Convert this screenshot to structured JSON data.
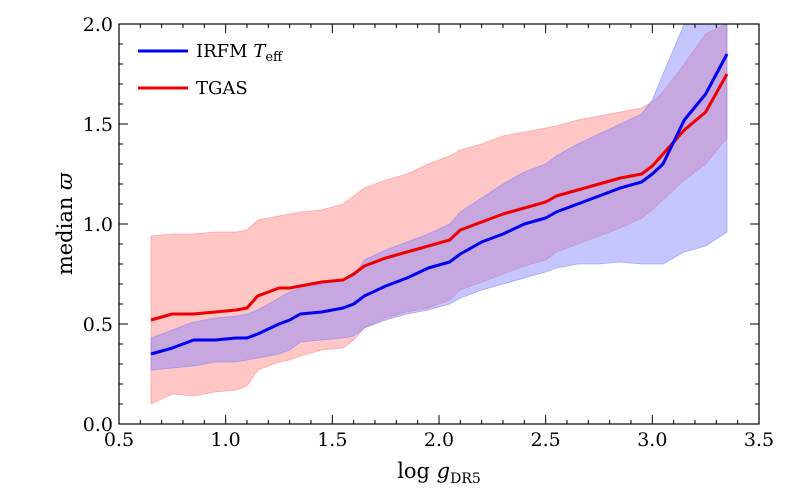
{
  "chart_data": {
    "type": "line",
    "title": "",
    "xlabel": {
      "main": "log ",
      "var": "g",
      "sub": "DR5"
    },
    "ylabel": {
      "main": "median ",
      "var": "ϖ"
    },
    "xlim": [
      0.5,
      3.5
    ],
    "ylim": [
      0.0,
      2.0
    ],
    "xticks": [
      "0.5",
      "1.0",
      "1.5",
      "2.0",
      "2.5",
      "3.0",
      "3.5"
    ],
    "yticks": [
      "0.0",
      "0.5",
      "1.0",
      "1.5",
      "2.0"
    ],
    "grid": false,
    "legend_position": "top-left",
    "series": [
      {
        "name": "IRFM T_eff",
        "legend_main": "IRFM ",
        "legend_var": "T",
        "legend_sub": "eff",
        "color": "#0000ee",
        "band_color": "#8080ff",
        "x": [
          0.65,
          0.75,
          0.85,
          0.95,
          1.05,
          1.1,
          1.15,
          1.25,
          1.3,
          1.35,
          1.45,
          1.55,
          1.6,
          1.65,
          1.75,
          1.85,
          1.95,
          2.05,
          2.1,
          2.2,
          2.3,
          2.4,
          2.5,
          2.55,
          2.65,
          2.75,
          2.85,
          2.95,
          3.0,
          3.05,
          3.15,
          3.25,
          3.35
        ],
        "median": [
          0.35,
          0.38,
          0.42,
          0.42,
          0.43,
          0.43,
          0.45,
          0.5,
          0.52,
          0.55,
          0.56,
          0.58,
          0.6,
          0.64,
          0.69,
          0.73,
          0.78,
          0.81,
          0.85,
          0.91,
          0.95,
          1.0,
          1.03,
          1.06,
          1.1,
          1.14,
          1.18,
          1.21,
          1.25,
          1.3,
          1.52,
          1.65,
          1.85
        ],
        "lower": [
          0.27,
          0.28,
          0.29,
          0.31,
          0.31,
          0.32,
          0.33,
          0.35,
          0.37,
          0.41,
          0.42,
          0.43,
          0.44,
          0.48,
          0.52,
          0.55,
          0.57,
          0.6,
          0.63,
          0.67,
          0.7,
          0.73,
          0.76,
          0.78,
          0.8,
          0.8,
          0.81,
          0.8,
          0.8,
          0.8,
          0.86,
          0.89,
          0.96
        ],
        "upper": [
          0.43,
          0.47,
          0.51,
          0.53,
          0.54,
          0.55,
          0.57,
          0.63,
          0.66,
          0.68,
          0.7,
          0.72,
          0.74,
          0.82,
          0.87,
          0.91,
          0.95,
          1.0,
          1.06,
          1.13,
          1.2,
          1.26,
          1.3,
          1.34,
          1.4,
          1.45,
          1.5,
          1.55,
          1.62,
          1.75,
          2.0,
          2.0,
          2.0
        ]
      },
      {
        "name": "TGAS",
        "legend_main": "TGAS",
        "color": "#ee0000",
        "band_color": "#ff8080",
        "x": [
          0.65,
          0.75,
          0.85,
          0.95,
          1.05,
          1.1,
          1.15,
          1.25,
          1.3,
          1.35,
          1.45,
          1.55,
          1.6,
          1.65,
          1.75,
          1.85,
          1.95,
          2.05,
          2.1,
          2.2,
          2.3,
          2.4,
          2.5,
          2.55,
          2.65,
          2.75,
          2.85,
          2.95,
          3.0,
          3.05,
          3.15,
          3.25,
          3.35
        ],
        "median": [
          0.52,
          0.55,
          0.55,
          0.56,
          0.57,
          0.58,
          0.64,
          0.68,
          0.68,
          0.69,
          0.71,
          0.72,
          0.75,
          0.79,
          0.83,
          0.86,
          0.89,
          0.92,
          0.97,
          1.01,
          1.05,
          1.08,
          1.11,
          1.14,
          1.17,
          1.2,
          1.23,
          1.25,
          1.29,
          1.35,
          1.47,
          1.56,
          1.75
        ],
        "lower": [
          0.1,
          0.15,
          0.14,
          0.16,
          0.17,
          0.19,
          0.27,
          0.31,
          0.32,
          0.34,
          0.37,
          0.38,
          0.42,
          0.48,
          0.53,
          0.56,
          0.58,
          0.62,
          0.67,
          0.71,
          0.75,
          0.79,
          0.82,
          0.86,
          0.9,
          0.94,
          0.98,
          1.03,
          1.07,
          1.12,
          1.22,
          1.3,
          1.43
        ],
        "upper": [
          0.94,
          0.95,
          0.95,
          0.96,
          0.96,
          0.97,
          1.02,
          1.04,
          1.05,
          1.06,
          1.07,
          1.1,
          1.14,
          1.18,
          1.22,
          1.25,
          1.3,
          1.34,
          1.37,
          1.4,
          1.44,
          1.46,
          1.48,
          1.49,
          1.52,
          1.54,
          1.56,
          1.58,
          1.61,
          1.66,
          1.8,
          1.95,
          2.0
        ]
      }
    ]
  }
}
